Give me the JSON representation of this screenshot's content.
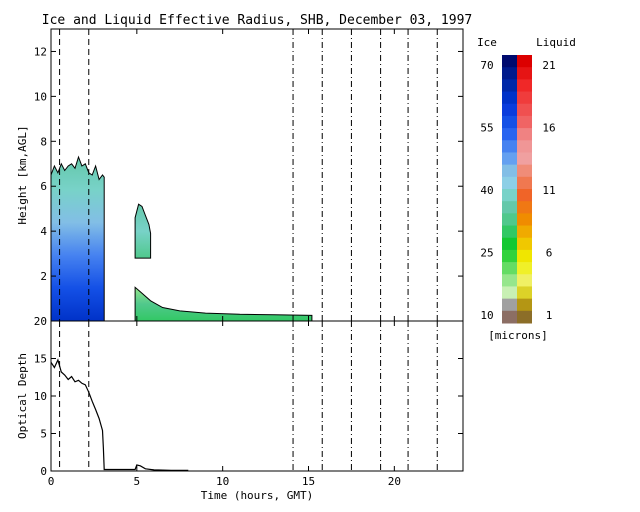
{
  "chart_data": [
    {
      "type": "heatmap",
      "title": "Ice and Liquid Effective Radius, SHB, December 03, 1997",
      "ylabel": "Height [km,AGL]",
      "xlim": [
        0,
        24
      ],
      "ylim": [
        0,
        13
      ],
      "x_ticks": [
        0,
        5,
        10,
        15,
        20
      ],
      "y_ticks": [
        2,
        4,
        6,
        8,
        10,
        12
      ],
      "dash_lines": [
        0.5,
        2.2
      ],
      "dashdot_lines": [
        14.1,
        15.8,
        17.5,
        19.2,
        20.8,
        22.5
      ],
      "cloud_regions": [
        {
          "name": "ice-cloud",
          "x": [
            0,
            3.1
          ],
          "base": 0,
          "top_profile": [
            [
              0,
              6.5
            ],
            [
              0.2,
              6.9
            ],
            [
              0.4,
              6.6
            ],
            [
              0.6,
              7.0
            ],
            [
              0.8,
              6.7
            ],
            [
              1.0,
              6.9
            ],
            [
              1.2,
              7.0
            ],
            [
              1.4,
              6.8
            ],
            [
              1.6,
              7.3
            ],
            [
              1.8,
              6.9
            ],
            [
              2.0,
              7.0
            ],
            [
              2.2,
              6.6
            ],
            [
              2.4,
              6.5
            ],
            [
              2.6,
              6.9
            ],
            [
              2.8,
              6.3
            ],
            [
              3.0,
              6.5
            ],
            [
              3.1,
              6.4
            ]
          ]
        },
        {
          "name": "ice-cloud-2",
          "x": [
            4.9,
            5.8
          ],
          "base": 2.8,
          "top_profile": [
            [
              4.9,
              4.6
            ],
            [
              5.1,
              5.2
            ],
            [
              5.3,
              5.1
            ],
            [
              5.5,
              4.7
            ],
            [
              5.7,
              4.3
            ],
            [
              5.8,
              3.9
            ]
          ]
        },
        {
          "name": "liquid-cloud",
          "x": [
            4.9,
            15.2
          ],
          "base": 0,
          "top_profile": [
            [
              4.9,
              1.5
            ],
            [
              5.2,
              1.3
            ],
            [
              5.8,
              0.9
            ],
            [
              6.5,
              0.6
            ],
            [
              7.5,
              0.45
            ],
            [
              9,
              0.35
            ],
            [
              11,
              0.3
            ],
            [
              13,
              0.28
            ],
            [
              15.2,
              0.25
            ]
          ]
        }
      ],
      "colorbar": {
        "ice_label": "Ice",
        "liquid_label": "Liquid",
        "ice_ticks": [
          "70",
          "55",
          "40",
          "25",
          "10"
        ],
        "liquid_ticks": [
          "21",
          "16",
          "11",
          "6",
          "1"
        ],
        "units": "[microns]",
        "ice_colors": [
          "#000a6e",
          "#001a8c",
          "#0028a8",
          "#0032c8",
          "#0a3cdc",
          "#1450e6",
          "#2864f0",
          "#4682f0",
          "#64a0f0",
          "#82bee6",
          "#8ccfe6",
          "#78d2c8",
          "#64c8aa",
          "#50c88c",
          "#32c864",
          "#14c832",
          "#32d23c",
          "#64dc64",
          "#96e68c",
          "#c8f0b4",
          "#a0a0a0",
          "#8c6e64"
        ],
        "liquid_colors": [
          "#dc0000",
          "#e61414",
          "#f02828",
          "#f03c3c",
          "#f05050",
          "#f06464",
          "#f08282",
          "#f09696",
          "#f0a0a0",
          "#f08c78",
          "#f07850",
          "#f06428",
          "#f07814",
          "#f08c00",
          "#f0aa00",
          "#f0c800",
          "#f0e600",
          "#f0f028",
          "#f0f064",
          "#dcd228",
          "#b49614",
          "#8c6e28"
        ]
      }
    },
    {
      "type": "line",
      "ylabel": "Optical Depth",
      "xlabel": "Time (hours, GMT)",
      "xlim": [
        0,
        24
      ],
      "ylim": [
        0,
        20
      ],
      "x_ticks": [
        0,
        5,
        10,
        15,
        20
      ],
      "y_ticks": [
        0,
        5,
        10,
        15,
        20
      ],
      "x": [
        0.0,
        0.2,
        0.4,
        0.6,
        0.8,
        1.0,
        1.2,
        1.4,
        1.6,
        1.8,
        2.0,
        2.2,
        2.4,
        2.6,
        2.8,
        3.0,
        3.05,
        3.1,
        4.9,
        5.0,
        5.2,
        5.5,
        6.0,
        7.0,
        8.0
      ],
      "values": [
        14.5,
        13.8,
        14.8,
        13.2,
        12.8,
        12.2,
        12.6,
        11.9,
        12.1,
        11.7,
        11.5,
        10.5,
        9.3,
        8.2,
        7.0,
        5.4,
        3.0,
        0.2,
        0.2,
        0.8,
        0.7,
        0.3,
        0.15,
        0.1,
        0.1
      ]
    }
  ]
}
